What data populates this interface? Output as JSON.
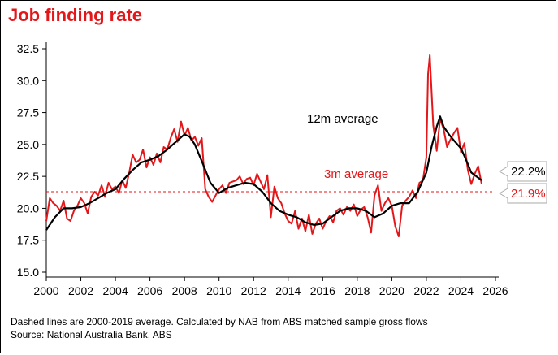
{
  "title": "Job finding rate",
  "footnote": "Dashed lines are 2000-2019 average. Calculated by NAB from ABS matched sample gross flows",
  "source": "Source: National Australia Bank, ABS",
  "colors": {
    "accent": "#e3171a",
    "line12m": "#000000",
    "line3m": "#e3171a"
  },
  "chart_data": {
    "type": "line",
    "xlim": [
      2000,
      2026
    ],
    "ylim": [
      15,
      32.5
    ],
    "xticks": [
      2000,
      2002,
      2004,
      2006,
      2008,
      2010,
      2012,
      2014,
      2016,
      2018,
      2020,
      2022,
      2024,
      2026
    ],
    "yticks": [
      "15.0",
      "17.5",
      "20.0",
      "22.5",
      "25.0",
      "27.5",
      "30.0",
      "32.5"
    ],
    "grid": false,
    "average_2000_2019": 21.3,
    "annotations": {
      "label_12m": "12m average",
      "label_3m": "3m average",
      "last_12m": "22.2%",
      "last_3m": "21.9%"
    },
    "series": [
      {
        "name": "12m average",
        "color": "#000000",
        "x": [
          2000.0,
          2000.5,
          2001.0,
          2001.5,
          2002.0,
          2002.5,
          2003.0,
          2003.5,
          2004.0,
          2004.5,
          2005.0,
          2005.5,
          2006.0,
          2006.5,
          2007.0,
          2007.5,
          2008.0,
          2008.3,
          2008.6,
          2009.0,
          2009.5,
          2010.0,
          2010.5,
          2011.0,
          2011.5,
          2012.0,
          2012.5,
          2013.0,
          2013.5,
          2014.0,
          2014.5,
          2015.0,
          2015.5,
          2016.0,
          2016.5,
          2017.0,
          2017.5,
          2018.0,
          2018.5,
          2019.0,
          2019.5,
          2020.0,
          2020.5,
          2021.0,
          2021.5,
          2022.0,
          2022.3,
          2022.6,
          2022.8,
          2023.0,
          2023.3,
          2023.6,
          2024.0,
          2024.3,
          2024.6,
          2025.0,
          2025.2
        ],
        "values": [
          18.3,
          19.3,
          20.0,
          20.0,
          20.1,
          20.4,
          20.8,
          21.2,
          21.5,
          22.3,
          23.0,
          23.6,
          23.8,
          24.1,
          24.6,
          25.2,
          25.8,
          25.6,
          25.0,
          23.7,
          22.0,
          21.2,
          21.6,
          21.8,
          22.0,
          21.9,
          21.3,
          20.4,
          19.8,
          19.5,
          19.3,
          18.9,
          18.7,
          18.8,
          19.3,
          19.8,
          20.0,
          20.0,
          19.8,
          19.3,
          19.6,
          20.2,
          20.4,
          20.4,
          21.3,
          22.8,
          24.8,
          26.4,
          27.2,
          26.4,
          25.8,
          25.3,
          24.7,
          23.8,
          22.8,
          22.4,
          22.2
        ]
      },
      {
        "name": "3m average",
        "color": "#e3171a",
        "x": [
          2000.0,
          2000.2,
          2000.4,
          2000.6,
          2000.8,
          2001.0,
          2001.2,
          2001.4,
          2001.6,
          2001.8,
          2002.0,
          2002.2,
          2002.4,
          2002.6,
          2002.8,
          2003.0,
          2003.2,
          2003.4,
          2003.6,
          2003.8,
          2004.0,
          2004.2,
          2004.4,
          2004.6,
          2004.8,
          2005.0,
          2005.2,
          2005.4,
          2005.6,
          2005.8,
          2006.0,
          2006.2,
          2006.4,
          2006.6,
          2006.8,
          2007.0,
          2007.2,
          2007.4,
          2007.6,
          2007.8,
          2008.0,
          2008.2,
          2008.4,
          2008.6,
          2008.8,
          2009.0,
          2009.2,
          2009.4,
          2009.6,
          2009.8,
          2010.0,
          2010.2,
          2010.4,
          2010.6,
          2010.8,
          2011.0,
          2011.2,
          2011.4,
          2011.6,
          2011.8,
          2012.0,
          2012.2,
          2012.4,
          2012.6,
          2012.8,
          2013.0,
          2013.2,
          2013.4,
          2013.6,
          2013.8,
          2014.0,
          2014.2,
          2014.4,
          2014.6,
          2014.8,
          2015.0,
          2015.2,
          2015.4,
          2015.6,
          2015.8,
          2016.0,
          2016.2,
          2016.4,
          2016.6,
          2016.8,
          2017.0,
          2017.2,
          2017.4,
          2017.6,
          2017.8,
          2018.0,
          2018.2,
          2018.4,
          2018.6,
          2018.8,
          2019.0,
          2019.2,
          2019.4,
          2019.6,
          2019.8,
          2020.0,
          2020.2,
          2020.4,
          2020.6,
          2020.8,
          2021.0,
          2021.2,
          2021.4,
          2021.6,
          2021.8,
          2022.0,
          2022.1,
          2022.2,
          2022.4,
          2022.6,
          2022.8,
          2023.0,
          2023.2,
          2023.4,
          2023.6,
          2023.8,
          2024.0,
          2024.2,
          2024.4,
          2024.6,
          2024.8,
          2025.0,
          2025.2
        ],
        "values": [
          19.0,
          20.8,
          20.4,
          20.2,
          19.8,
          20.6,
          19.2,
          19.0,
          19.8,
          20.2,
          20.8,
          20.4,
          19.6,
          20.9,
          21.3,
          21.0,
          21.8,
          20.9,
          22.0,
          21.5,
          21.7,
          21.2,
          22.2,
          21.6,
          22.8,
          24.2,
          23.6,
          23.8,
          24.6,
          23.2,
          24.0,
          23.4,
          24.3,
          23.6,
          24.8,
          24.6,
          25.5,
          26.2,
          25.2,
          26.8,
          25.7,
          26.3,
          25.3,
          25.6,
          24.9,
          25.5,
          21.5,
          20.9,
          20.5,
          21.0,
          21.5,
          21.8,
          21.2,
          22.0,
          22.1,
          22.2,
          22.5,
          21.9,
          22.3,
          22.4,
          21.8,
          22.7,
          22.1,
          21.5,
          22.6,
          19.3,
          21.7,
          20.8,
          20.4,
          19.6,
          19.0,
          18.8,
          19.8,
          18.4,
          19.2,
          18.2,
          19.5,
          18.0,
          18.8,
          19.2,
          18.4,
          19.0,
          19.4,
          18.9,
          19.8,
          20.0,
          19.5,
          20.1,
          19.8,
          20.3,
          19.4,
          19.9,
          20.1,
          19.3,
          18.1,
          21.0,
          21.8,
          19.8,
          20.4,
          20.8,
          20.2,
          18.6,
          17.8,
          20.2,
          20.6,
          20.9,
          21.4,
          20.8,
          22.0,
          22.2,
          24.0,
          30.5,
          32.0,
          26.5,
          24.5,
          27.0,
          26.2,
          24.8,
          25.4,
          25.9,
          26.3,
          24.4,
          25.1,
          23.0,
          21.9,
          22.7,
          23.3,
          21.9
        ]
      }
    ]
  }
}
